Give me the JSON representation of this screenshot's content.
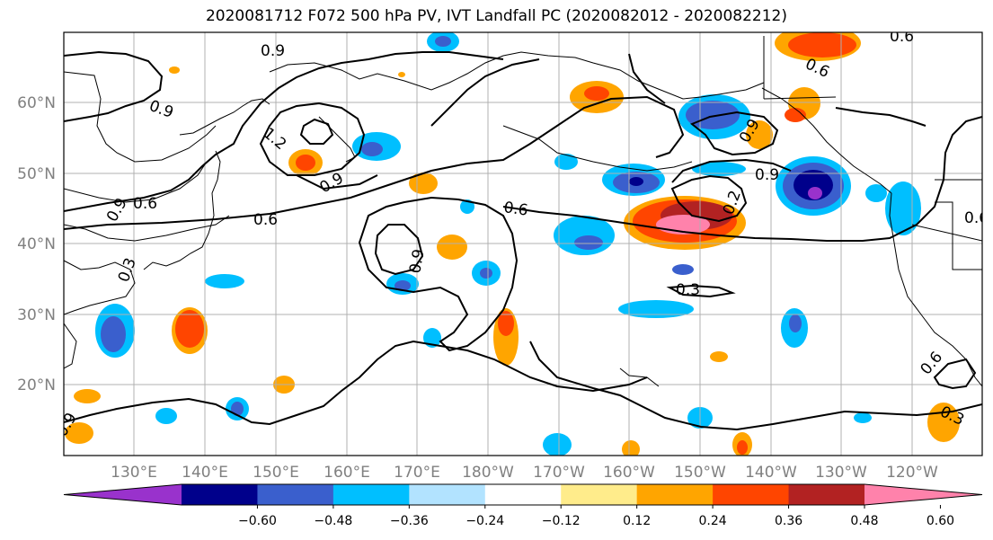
{
  "title": "2020081712 F072 500 hPa PV, IVT Landfall PC (2020082012 - 2020082212)",
  "lat_labels": [
    "60°N",
    "50°N",
    "40°N",
    "30°N",
    "20°N"
  ],
  "lon_labels": [
    "130°E",
    "140°E",
    "150°E",
    "160°E",
    "170°E",
    "180°W",
    "170°W",
    "160°W",
    "150°W",
    "140°W",
    "130°W",
    "120°W"
  ],
  "colorbar": {
    "colors": [
      "#9932cc",
      "#00008b",
      "#3a5fcd",
      "#00bfff",
      "#b2e3ff",
      "#ffffff",
      "#ffec8b",
      "#ffa500",
      "#ff4500",
      "#b22222",
      "#ff82ab"
    ],
    "tick_labels": [
      "−0.60",
      "−0.48",
      "−0.36",
      "−0.24",
      "−0.12",
      "0.12",
      "0.24",
      "0.36",
      "0.48",
      "0.60"
    ]
  },
  "contour_labels": [
    "0.9",
    "0.9",
    "0.9",
    "1.2",
    "0.9",
    "0.6",
    "0.6",
    "0.9",
    "0.3",
    "0.6",
    "0.9",
    "0.6",
    "0.9",
    "0.6",
    "0.3",
    "0.9",
    "0.6",
    "0.6",
    "0.3",
    "0.2"
  ],
  "colors": {
    "land_line": "#000000",
    "grid": "#b0b0b0",
    "contour": "#000000"
  }
}
